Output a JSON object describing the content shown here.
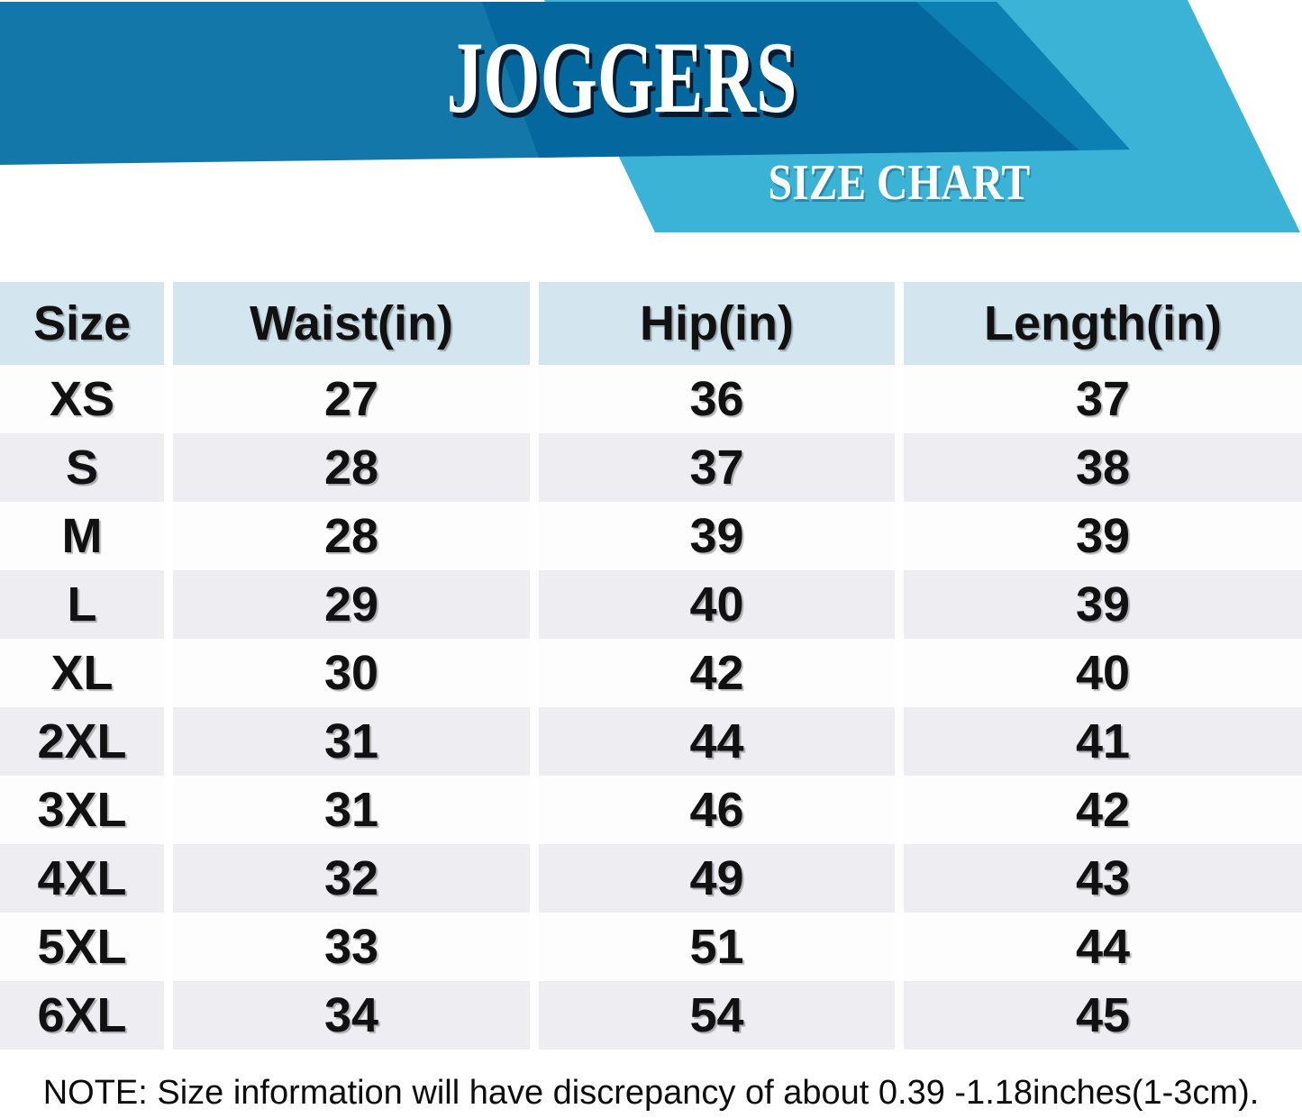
{
  "theme": {
    "band": "#1377A9",
    "band_dark": "#04689F",
    "band_med": "#0C80B2",
    "ribbon": "#3BB3D6",
    "header_bg": "#D3E5EF",
    "stripe": "#EDEDF2",
    "text": "#111111"
  },
  "chart_data": {
    "type": "table",
    "title": "JOGGERS",
    "subtitle": "SIZE CHART",
    "columns": [
      "Size",
      "Waist(in)",
      "Hip(in)",
      "Length(in)"
    ],
    "rows": [
      [
        "XS",
        "27",
        "36",
        "37"
      ],
      [
        "S",
        "28",
        "37",
        "38"
      ],
      [
        "M",
        "28",
        "39",
        "39"
      ],
      [
        "L",
        "29",
        "40",
        "39"
      ],
      [
        "XL",
        "30",
        "42",
        "40"
      ],
      [
        "2XL",
        "31",
        "44",
        "41"
      ],
      [
        "3XL",
        "31",
        "46",
        "42"
      ],
      [
        "4XL",
        "32",
        "49",
        "43"
      ],
      [
        "5XL",
        "33",
        "51",
        "44"
      ],
      [
        "6XL",
        "34",
        "54",
        "45"
      ]
    ],
    "note": "NOTE: Size information will have discrepancy of about 0.39 -1.18inches(1-3cm).",
    "layout": {
      "unit": "inches",
      "legend_position": "none",
      "grid": "striped-rows"
    }
  }
}
